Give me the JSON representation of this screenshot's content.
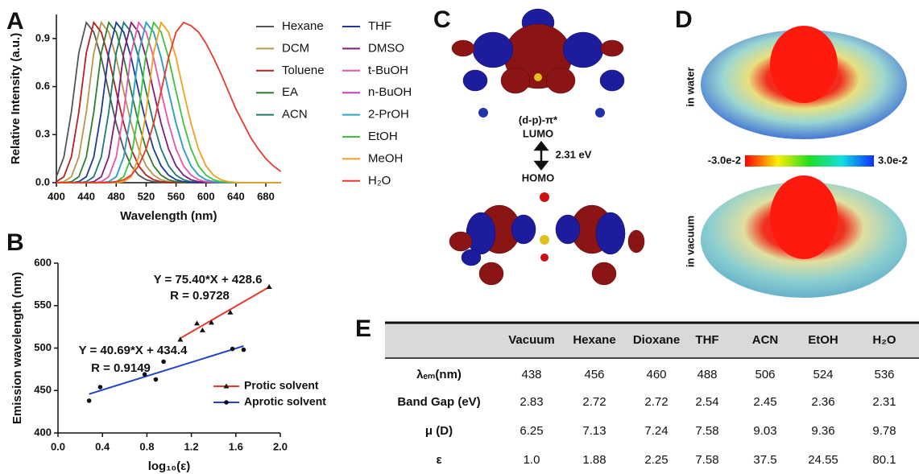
{
  "chart_data": [
    {
      "type": "line",
      "panel_label": "A",
      "xlabel": "Wavelength (nm)",
      "ylabel": "Relative Intensity (a.u.)",
      "xlim": [
        400,
        700
      ],
      "ylim": [
        0,
        1.05
      ],
      "xticks": [
        400,
        440,
        480,
        520,
        560,
        600,
        640,
        680
      ],
      "yticks": [
        {
          "value": 0,
          "label": "0.0"
        },
        0.3,
        0.6,
        0.9
      ],
      "x": [
        400,
        410,
        420,
        430,
        440,
        450,
        460,
        470,
        480,
        490,
        500,
        510,
        520,
        530,
        540,
        550,
        560,
        570,
        580,
        590,
        600,
        610,
        620,
        630,
        640,
        650,
        660,
        670,
        680,
        690,
        700
      ],
      "series": [
        {
          "name": "Hexane",
          "color": "#555555",
          "values": [
            0.037,
            0.16,
            0.44,
            0.81,
            1,
            0.94,
            0.78,
            0.57,
            0.37,
            0.21,
            0.105,
            0.047,
            0.018,
            0.006,
            0.002,
            0,
            0,
            0,
            0,
            0,
            0,
            0,
            0,
            0,
            0,
            0,
            0,
            0,
            0,
            0,
            0
          ]
        },
        {
          "name": "DCM",
          "color": "#b5964a",
          "values": [
            0,
            0.006,
            0.037,
            0.16,
            0.44,
            0.81,
            1,
            0.94,
            0.78,
            0.57,
            0.37,
            0.21,
            0.105,
            0.047,
            0.018,
            0.006,
            0.002,
            0,
            0,
            0,
            0,
            0,
            0,
            0,
            0,
            0,
            0,
            0,
            0,
            0,
            0
          ]
        },
        {
          "name": "Toluene",
          "color": "#b22222",
          "values": [
            0.006,
            0.037,
            0.16,
            0.44,
            0.81,
            1,
            0.94,
            0.78,
            0.57,
            0.37,
            0.21,
            0.105,
            0.047,
            0.018,
            0.006,
            0.002,
            0,
            0,
            0,
            0,
            0,
            0,
            0,
            0,
            0,
            0,
            0,
            0,
            0,
            0,
            0
          ]
        },
        {
          "name": "EA",
          "color": "#2e7d32",
          "values": [
            0,
            0,
            0.006,
            0.037,
            0.16,
            0.44,
            0.81,
            1,
            0.94,
            0.78,
            0.57,
            0.37,
            0.21,
            0.105,
            0.047,
            0.018,
            0.006,
            0.002,
            0,
            0,
            0,
            0,
            0,
            0,
            0,
            0,
            0,
            0,
            0,
            0,
            0
          ]
        },
        {
          "name": "ACN",
          "color": "#1b7a6e",
          "values": [
            0,
            0,
            0,
            0,
            0.006,
            0.037,
            0.16,
            0.44,
            0.81,
            1,
            0.94,
            0.78,
            0.57,
            0.37,
            0.21,
            0.105,
            0.047,
            0.018,
            0.006,
            0.002,
            0,
            0,
            0,
            0,
            0,
            0,
            0,
            0,
            0,
            0,
            0
          ]
        },
        {
          "name": "THF",
          "color": "#1f3a93",
          "values": [
            0,
            0,
            0,
            0.006,
            0.037,
            0.16,
            0.44,
            0.81,
            1,
            0.94,
            0.78,
            0.57,
            0.37,
            0.21,
            0.105,
            0.047,
            0.018,
            0.006,
            0.002,
            0,
            0,
            0,
            0,
            0,
            0,
            0,
            0,
            0,
            0,
            0,
            0
          ]
        },
        {
          "name": "DMSO",
          "color": "#7b1f7b",
          "values": [
            0,
            0,
            0,
            0,
            0,
            0.006,
            0.037,
            0.16,
            0.44,
            0.81,
            1,
            0.94,
            0.78,
            0.57,
            0.37,
            0.21,
            0.105,
            0.047,
            0.018,
            0.006,
            0.002,
            0,
            0,
            0,
            0,
            0,
            0,
            0,
            0,
            0,
            0
          ]
        },
        {
          "name": "t-BuOH",
          "color": "#e754a8",
          "values": [
            0,
            0,
            0,
            0,
            0,
            0,
            0.006,
            0.037,
            0.16,
            0.44,
            0.81,
            1,
            0.94,
            0.78,
            0.57,
            0.37,
            0.21,
            0.105,
            0.047,
            0.018,
            0.006,
            0.002,
            0,
            0,
            0,
            0,
            0,
            0,
            0,
            0,
            0
          ]
        },
        {
          "name": "n-BuOH",
          "color": "#c040c0",
          "values": [
            0,
            0,
            0,
            0,
            0,
            0,
            0,
            0.006,
            0.037,
            0.16,
            0.44,
            0.81,
            1,
            0.94,
            0.78,
            0.57,
            0.37,
            0.21,
            0.105,
            0.047,
            0.018,
            0.006,
            0.002,
            0,
            0,
            0,
            0,
            0,
            0,
            0,
            0
          ]
        },
        {
          "name": "2-PrOH",
          "color": "#29a9c0",
          "values": [
            0,
            0,
            0,
            0,
            0,
            0,
            0,
            0.006,
            0.037,
            0.16,
            0.44,
            0.81,
            1,
            0.94,
            0.78,
            0.57,
            0.37,
            0.21,
            0.105,
            0.047,
            0.018,
            0.006,
            0.002,
            0,
            0,
            0,
            0,
            0,
            0,
            0,
            0
          ]
        },
        {
          "name": "EtOH",
          "color": "#3cc43c",
          "values": [
            0,
            0,
            0,
            0,
            0,
            0,
            0,
            0,
            0.006,
            0.037,
            0.16,
            0.44,
            0.81,
            1,
            0.94,
            0.78,
            0.57,
            0.37,
            0.21,
            0.105,
            0.047,
            0.018,
            0.006,
            0.002,
            0,
            0,
            0,
            0,
            0,
            0,
            0
          ]
        },
        {
          "name": "MeOH",
          "color": "#f0a020",
          "values": [
            0,
            0,
            0,
            0,
            0,
            0,
            0,
            0,
            0,
            0.006,
            0.037,
            0.16,
            0.44,
            0.81,
            1,
            0.94,
            0.78,
            0.57,
            0.37,
            0.21,
            0.105,
            0.047,
            0.018,
            0.006,
            0.002,
            0,
            0,
            0,
            0,
            0,
            0
          ]
        },
        {
          "name": "H₂O",
          "color": "#e8392c",
          "values": [
            0,
            0,
            0,
            0,
            0,
            0,
            0,
            0.002,
            0.006,
            0.018,
            0.047,
            0.105,
            0.21,
            0.37,
            0.57,
            0.78,
            0.94,
            1,
            0.98,
            0.94,
            0.87,
            0.78,
            0.68,
            0.57,
            0.46,
            0.37,
            0.28,
            0.21,
            0.15,
            0.105,
            0.07
          ]
        }
      ]
    },
    {
      "type": "scatter",
      "panel_label": "B",
      "xlabel": "log₁₀(ε)",
      "ylabel": "Emission wavelength (nm)",
      "xlim": [
        0,
        2
      ],
      "ylim": [
        400,
        600
      ],
      "xticks": [
        {
          "value": 0,
          "label": "0.0"
        },
        0.4,
        0.8,
        1.2,
        1.6,
        {
          "value": 2,
          "label": "2.0"
        }
      ],
      "yticks": [
        400,
        450,
        500,
        550,
        600
      ],
      "series": [
        {
          "name": "Protic solvent",
          "color": "#e8392c",
          "marker": "triangle",
          "x": [
            1.1,
            1.25,
            1.3,
            1.38,
            1.55,
            1.9
          ],
          "values": [
            510,
            529,
            521,
            530,
            542,
            572
          ],
          "fit": {
            "x": [
              1.1,
              1.9
            ],
            "values": [
              511.5,
              571.9
            ],
            "label": "Y = 75.40*X + 428.6",
            "r_label": "R = 0.9728"
          }
        },
        {
          "name": "Aprotic solvent",
          "color": "#1f45c8",
          "marker": "circle",
          "x": [
            0.28,
            0.38,
            0.78,
            0.88,
            0.95,
            1.57,
            1.67
          ],
          "values": [
            438,
            454,
            469,
            463,
            484,
            499,
            498
          ],
          "fit": {
            "x": [
              0.28,
              1.67
            ],
            "values": [
              445.8,
              502.4
            ],
            "label": "Y = 40.69*X + 434.4",
            "r_label": "R = 0.9149"
          }
        }
      ]
    }
  ],
  "panels": {
    "C": {
      "letter": "C",
      "transition": "(d-p)-π*",
      "lumo": "LUMO",
      "gap": "2.31 eV",
      "homo": "HOMO"
    },
    "D": {
      "letter": "D",
      "top": "in water",
      "bottom": "in vacuum",
      "scale_min": "-3.0e-2",
      "scale_max": "3.0e-2"
    }
  },
  "table": {
    "letter": "E",
    "columns": [
      "Vacuum",
      "Hexane",
      "Dioxane",
      "THF",
      "ACN",
      "EtOH",
      "H₂O"
    ],
    "rows": [
      {
        "label": "λₑₘ(nm)",
        "cells": [
          "438",
          "456",
          "460",
          "488",
          "506",
          "524",
          "536"
        ]
      },
      {
        "label": "Band Gap (eV)",
        "cells": [
          "2.83",
          "2.72",
          "2.72",
          "2.54",
          "2.45",
          "2.36",
          "2.31"
        ]
      },
      {
        "label": "μ (D)",
        "cells": [
          "6.25",
          "7.13",
          "7.24",
          "7.58",
          "9.03",
          "9.36",
          "9.78"
        ]
      },
      {
        "label": "ε",
        "cells": [
          "1.0",
          "1.88",
          "2.25",
          "7.58",
          "37.5",
          "24.55",
          "80.1"
        ]
      }
    ]
  }
}
